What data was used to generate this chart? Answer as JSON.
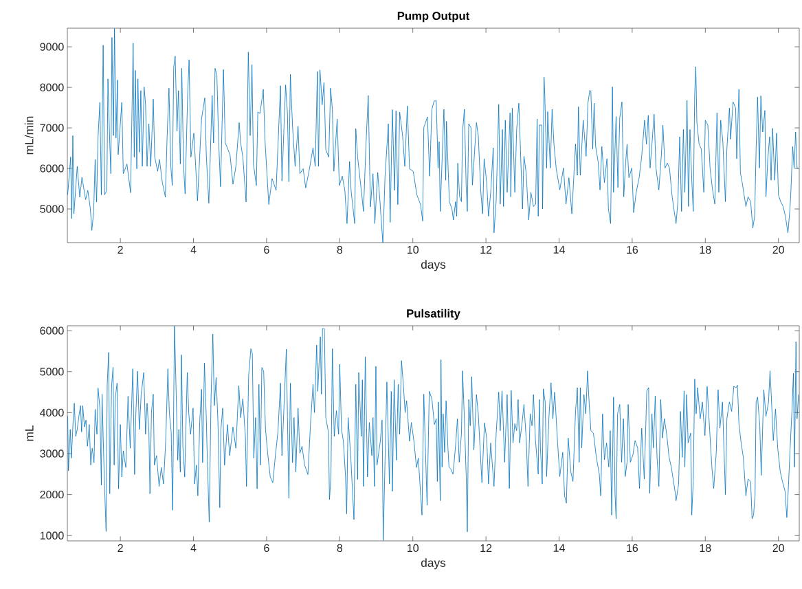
{
  "chart_data": [
    {
      "type": "line",
      "title": "Pump Output",
      "xlabel": "days",
      "ylabel": "mL/min",
      "color": "#0072bd",
      "marker": "none",
      "xlim": [
        0.55,
        20.57
      ],
      "ylim": [
        4170,
        9460
      ],
      "xticks": [
        2,
        4,
        6,
        8,
        10,
        12,
        14,
        16,
        18,
        20
      ],
      "yticks": [
        5000,
        6000,
        7000,
        8000,
        9000
      ],
      "x": [
        0.56,
        0.64,
        0.67,
        0.7,
        0.73,
        0.82,
        0.89,
        0.95,
        1.05,
        1.11,
        1.18,
        1.22,
        1.27,
        1.31,
        1.35,
        1.39,
        1.44,
        1.48,
        1.53,
        1.57,
        1.63,
        1.66,
        1.71,
        1.74,
        1.77,
        1.81,
        1.84,
        1.88,
        1.92,
        1.94,
        2.04,
        2.08,
        2.18,
        2.28,
        2.35,
        2.38,
        2.41,
        2.45,
        2.48,
        2.52,
        2.56,
        2.6,
        2.65,
        2.69,
        2.73,
        2.78,
        2.83,
        2.9,
        2.94,
        3.02,
        3.07,
        3.15,
        3.18,
        3.23,
        3.28,
        3.33,
        3.38,
        3.42,
        3.46,
        3.5,
        3.55,
        3.59,
        3.64,
        3.68,
        3.73,
        3.77,
        3.84,
        3.88,
        3.93,
        4.01,
        4.06,
        4.11,
        4.22,
        4.31,
        4.35,
        4.42,
        4.51,
        4.55,
        4.59,
        4.64,
        4.69,
        4.74,
        4.82,
        4.87,
        5.0,
        5.08,
        5.16,
        5.25,
        5.29,
        5.35,
        5.44,
        5.5,
        5.55,
        5.6,
        5.64,
        5.72,
        5.76,
        5.82,
        5.91,
        5.96,
        6.06,
        6.15,
        6.26,
        6.38,
        6.42,
        6.52,
        6.57,
        6.61,
        6.65,
        6.71,
        6.78,
        6.86,
        6.91,
        7.0,
        7.07,
        7.16,
        7.27,
        7.33,
        7.39,
        7.42,
        7.46,
        7.52,
        7.57,
        7.62,
        7.7,
        7.75,
        7.8,
        7.84,
        7.93,
        7.99,
        8.07,
        8.14,
        8.2,
        8.27,
        8.31,
        8.41,
        8.44,
        8.49,
        8.59,
        8.65,
        8.72,
        8.78,
        8.84,
        8.91,
        8.96,
        9.04,
        9.1,
        9.18,
        9.24,
        9.33,
        9.38,
        9.44,
        9.5,
        9.54,
        9.59,
        9.64,
        9.72,
        9.78,
        9.85,
        9.91,
        10.01,
        10.11,
        10.21,
        10.27,
        10.3,
        10.4,
        10.46,
        10.52,
        10.58,
        10.64,
        10.69,
        10.72,
        10.75,
        10.85,
        10.9,
        10.92,
        10.97,
        11.0,
        11.07,
        11.11,
        11.17,
        11.2,
        11.23,
        11.28,
        11.33,
        11.36,
        11.41,
        11.46,
        11.49,
        11.53,
        11.59,
        11.63,
        11.74,
        11.79,
        11.86,
        11.91,
        11.95,
        12.02,
        12.07,
        12.13,
        12.2,
        12.22,
        12.28,
        12.35,
        12.39,
        12.45,
        12.48,
        12.53,
        12.58,
        12.66,
        12.68,
        12.72,
        12.79,
        12.84,
        12.9,
        12.97,
        13.0,
        13.04,
        13.1,
        13.17,
        13.23,
        13.3,
        13.36,
        13.4,
        13.43,
        13.46,
        13.53,
        13.55,
        13.59,
        13.61,
        13.66,
        13.69,
        13.76,
        13.81,
        13.86,
        13.92,
        14.02,
        14.12,
        14.19,
        14.27,
        14.35,
        14.45,
        14.5,
        14.53,
        14.58,
        14.66,
        14.74,
        14.79,
        14.84,
        14.87,
        14.92,
        14.96,
        15.0,
        15.07,
        15.12,
        15.17,
        15.24,
        15.31,
        15.35,
        15.41,
        15.46,
        15.49,
        15.56,
        15.61,
        15.66,
        15.72,
        15.77,
        15.82,
        15.86,
        15.91,
        15.99,
        16.04,
        16.11,
        16.19,
        16.26,
        16.34,
        16.39,
        16.44,
        16.49,
        16.54,
        16.6,
        16.65,
        16.73,
        16.8,
        16.84,
        16.9,
        16.96,
        17.02,
        17.09,
        17.15,
        17.2,
        17.25,
        17.3,
        17.35,
        17.4,
        17.44,
        17.5,
        17.54,
        17.58,
        17.63,
        17.67,
        17.71,
        17.74,
        17.77,
        17.83,
        17.89,
        17.96,
        18.0,
        18.07,
        18.13,
        18.19,
        18.26,
        18.32,
        18.37,
        18.42,
        18.48,
        18.55,
        18.59,
        18.66,
        18.69,
        18.76,
        18.83,
        18.86,
        18.92,
        18.96,
        19.01,
        19.11,
        19.17,
        19.24,
        19.3,
        19.35,
        19.39,
        19.43,
        19.48,
        19.52,
        19.57,
        19.63,
        19.66,
        19.71,
        19.76,
        19.8,
        19.84,
        19.9,
        19.95,
        20.0,
        20.06,
        20.13,
        20.19,
        20.26,
        20.31,
        20.34,
        20.39,
        20.43,
        20.47,
        20.51,
        20.55
      ],
      "values": [
        5350,
        6280,
        4760,
        6810,
        4880,
        6050,
        5290,
        5780,
        5230,
        5460,
        5000,
        4470,
        4940,
        6220,
        5170,
        6780,
        7630,
        5350,
        9040,
        5350,
        5460,
        8210,
        6630,
        5870,
        9230,
        6810,
        9450,
        6750,
        8180,
        6340,
        7630,
        5870,
        6110,
        5400,
        9090,
        6280,
        8420,
        5990,
        8210,
        6400,
        7920,
        6050,
        8010,
        7570,
        6050,
        7100,
        6050,
        7710,
        6280,
        5930,
        6220,
        5640,
        5520,
        5290,
        6810,
        7980,
        6050,
        5580,
        8500,
        8770,
        6920,
        7920,
        6110,
        8470,
        6050,
        5370,
        7800,
        8680,
        6280,
        6870,
        6050,
        5200,
        7220,
        7740,
        6340,
        5140,
        7800,
        6630,
        8470,
        8300,
        6630,
        5550,
        8440,
        6630,
        6340,
        5610,
        6050,
        7130,
        6630,
        6280,
        5170,
        8870,
        6810,
        8560,
        6110,
        5580,
        7390,
        7360,
        7950,
        6630,
        5110,
        5750,
        5460,
        8040,
        5690,
        8060,
        7360,
        5670,
        8320,
        7040,
        6050,
        7040,
        5870,
        5990,
        5520,
        5930,
        6510,
        6050,
        8390,
        6050,
        8430,
        7570,
        8120,
        6460,
        6280,
        7980,
        7450,
        5930,
        7220,
        5580,
        5810,
        5460,
        4640,
        6170,
        5460,
        4640,
        6980,
        6280,
        5460,
        4940,
        6630,
        7800,
        5050,
        5870,
        4640,
        5900,
        5200,
        4170,
        5810,
        7100,
        4670,
        7450,
        5460,
        7420,
        5110,
        7390,
        6810,
        6050,
        7540,
        5990,
        5930,
        5350,
        5110,
        4700,
        7010,
        7270,
        5810,
        7450,
        7660,
        7670,
        6010,
        6660,
        4940,
        7460,
        5710,
        7160,
        5890,
        5180,
        5000,
        4730,
        5180,
        4820,
        6130,
        5300,
        5180,
        6900,
        7460,
        5530,
        4940,
        7100,
        7010,
        5590,
        7130,
        6810,
        5410,
        4880,
        6240,
        5650,
        4820,
        5410,
        6510,
        4410,
        5210,
        7580,
        5120,
        6960,
        5060,
        7190,
        5410,
        7370,
        5300,
        7490,
        5410,
        6960,
        7610,
        5770,
        5000,
        6300,
        5890,
        4730,
        5410,
        5060,
        5120,
        7220,
        4820,
        7070,
        7070,
        5000,
        8250,
        7790,
        6010,
        7400,
        6010,
        7460,
        6600,
        6010,
        5470,
        6010,
        5120,
        5770,
        4880,
        6600,
        5830,
        7520,
        5830,
        7190,
        6300,
        7610,
        7930,
        7900,
        6480,
        7610,
        6540,
        6160,
        5470,
        6540,
        5650,
        6240,
        5000,
        4640,
        8010,
        5410,
        7280,
        5530,
        7250,
        7640,
        5300,
        6130,
        6600,
        5770,
        6010,
        4910,
        5410,
        5770,
        6300,
        7190,
        6600,
        7310,
        6010,
        6600,
        7340,
        6010,
        5470,
        6360,
        7070,
        6010,
        6130,
        6010,
        5330,
        4940,
        4640,
        5180,
        6780,
        4940,
        6960,
        5410,
        7680,
        5060,
        6960,
        5710,
        4940,
        7840,
        8510,
        7130,
        6600,
        6480,
        5410,
        7190,
        7070,
        6010,
        5530,
        5120,
        7370,
        5410,
        7190,
        6660,
        5180,
        6480,
        7490,
        6720,
        7640,
        7490,
        6240,
        7950,
        5890,
        5650,
        5060,
        5300,
        5180,
        4530,
        4820,
        6480,
        7760,
        6010,
        7790,
        6900,
        7430,
        5300,
        6240,
        6780,
        5710,
        6990,
        5710,
        6870,
        5350,
        5180,
        5060,
        4820,
        4410,
        4940,
        5410,
        6540,
        6010,
        6900,
        6010,
        6010
      ]
    },
    {
      "type": "line",
      "title": "Pulsatility",
      "xlabel": "days",
      "ylabel": "mL",
      "color": "#0072bd",
      "marker": "none",
      "xlim": [
        0.55,
        20.57
      ],
      "ylim": [
        870,
        6120
      ],
      "xticks": [
        2,
        4,
        6,
        8,
        10,
        12,
        14,
        16,
        18,
        20
      ],
      "yticks": [
        1000,
        2000,
        3000,
        4000,
        5000,
        6000
      ],
      "x": [
        0.56,
        0.58,
        0.63,
        0.66,
        0.71,
        0.74,
        0.78,
        0.82,
        0.87,
        0.91,
        0.94,
        0.97,
        1.02,
        1.06,
        1.1,
        1.15,
        1.19,
        1.23,
        1.28,
        1.31,
        1.36,
        1.39,
        1.44,
        1.48,
        1.5,
        1.53,
        1.57,
        1.61,
        1.64,
        1.68,
        1.71,
        1.76,
        1.8,
        1.83,
        1.86,
        1.91,
        1.95,
        2.0,
        2.04,
        2.08,
        2.15,
        2.21,
        2.27,
        2.34,
        2.39,
        2.42,
        2.47,
        2.52,
        2.57,
        2.64,
        2.69,
        2.73,
        2.78,
        2.81,
        2.85,
        2.9,
        2.93,
        2.99,
        3.06,
        3.12,
        3.18,
        3.24,
        3.3,
        3.34,
        3.39,
        3.43,
        3.48,
        3.51,
        3.57,
        3.6,
        3.64,
        3.67,
        3.71,
        3.76,
        3.83,
        3.87,
        3.92,
        3.99,
        4.03,
        4.08,
        4.12,
        4.17,
        4.22,
        4.25,
        4.3,
        4.35,
        4.38,
        4.43,
        4.48,
        4.53,
        4.57,
        4.62,
        4.67,
        4.72,
        4.75,
        4.8,
        4.85,
        4.93,
        4.99,
        5.08,
        5.16,
        5.24,
        5.29,
        5.35,
        5.42,
        5.45,
        5.51,
        5.57,
        5.61,
        5.65,
        5.7,
        5.74,
        5.79,
        5.83,
        5.87,
        5.92,
        5.97,
        6.03,
        6.1,
        6.17,
        6.24,
        6.31,
        6.38,
        6.42,
        6.49,
        6.54,
        6.57,
        6.61,
        6.65,
        6.71,
        6.75,
        6.8,
        6.86,
        6.91,
        6.97,
        7.04,
        7.13,
        7.2,
        7.27,
        7.31,
        7.37,
        7.4,
        7.47,
        7.5,
        7.53,
        7.58,
        7.62,
        7.69,
        7.72,
        7.76,
        7.8,
        7.85,
        7.91,
        7.97,
        8.0,
        8.05,
        8.1,
        8.16,
        8.19,
        8.23,
        8.3,
        8.39,
        8.44,
        8.49,
        8.52,
        8.59,
        8.62,
        8.65,
        8.7,
        8.76,
        8.81,
        8.88,
        8.91,
        8.95,
        8.99,
        9.02,
        9.11,
        9.16,
        9.19,
        9.24,
        9.29,
        9.36,
        9.41,
        9.44,
        9.49,
        9.55,
        9.6,
        9.64,
        9.69,
        9.74,
        9.79,
        9.83,
        9.91,
        9.96,
        10.03,
        10.1,
        10.15,
        10.25,
        10.3,
        10.39,
        10.45,
        10.52,
        10.59,
        10.64,
        10.67,
        10.7,
        10.75,
        10.77,
        10.8,
        10.83,
        10.87,
        10.91,
        10.96,
        10.99,
        11.04,
        11.1,
        11.17,
        11.22,
        11.27,
        11.33,
        11.36,
        11.41,
        11.46,
        11.49,
        11.53,
        11.57,
        11.61,
        11.67,
        11.74,
        11.79,
        11.89,
        11.96,
        12.02,
        12.07,
        12.13,
        12.22,
        12.28,
        12.35,
        12.39,
        12.44,
        12.48,
        12.51,
        12.58,
        12.64,
        12.69,
        12.74,
        12.79,
        12.84,
        12.88,
        12.92,
        12.98,
        13.04,
        13.1,
        13.15,
        13.21,
        13.26,
        13.3,
        13.35,
        13.43,
        13.46,
        13.49,
        13.54,
        13.57,
        13.62,
        13.66,
        13.72,
        13.78,
        13.83,
        13.88,
        13.96,
        14.02,
        14.1,
        14.15,
        14.2,
        14.25,
        14.32,
        14.38,
        14.45,
        14.5,
        14.55,
        14.58,
        14.62,
        14.68,
        14.73,
        14.78,
        14.81,
        14.87,
        14.94,
        15.02,
        15.1,
        15.14,
        15.19,
        15.24,
        15.3,
        15.36,
        15.4,
        15.44,
        15.49,
        15.53,
        15.56,
        15.6,
        15.66,
        15.71,
        15.76,
        15.81,
        15.86,
        15.89,
        15.95,
        16.02,
        16.08,
        16.15,
        16.2,
        16.26,
        16.33,
        16.4,
        16.45,
        16.48,
        16.54,
        16.58,
        16.63,
        16.68,
        16.73,
        16.78,
        16.83,
        16.88,
        16.94,
        17.01,
        17.07,
        17.12,
        17.17,
        17.2,
        17.27,
        17.32,
        17.37,
        17.42,
        17.44,
        17.49,
        17.53,
        17.6,
        17.63,
        17.67,
        17.71,
        17.75,
        17.79,
        17.86,
        17.92,
        17.99,
        18.05,
        18.12,
        18.18,
        18.23,
        18.3,
        18.35,
        18.4,
        18.47,
        18.55,
        18.59,
        18.66,
        18.72,
        18.78,
        18.84,
        18.88,
        18.92,
        18.98,
        19.04,
        19.11,
        19.17,
        19.24,
        19.28,
        19.32,
        19.36,
        19.39,
        19.43,
        19.49,
        19.53,
        19.6,
        19.66,
        19.73,
        19.77,
        19.8,
        19.86,
        19.92,
        19.98,
        20.05,
        20.11,
        20.18,
        20.23,
        20.28,
        20.32,
        20.37,
        20.41,
        20.44,
        20.48,
        20.51,
        20.55
      ],
      "values": [
        3910,
        2580,
        3590,
        2890,
        3820,
        4230,
        3420,
        3590,
        3940,
        4170,
        3530,
        4170,
        3650,
        3820,
        3180,
        3710,
        2720,
        3130,
        2780,
        4080,
        3470,
        4600,
        4110,
        2230,
        4450,
        3420,
        2140,
        1100,
        4690,
        5470,
        2020,
        4640,
        5110,
        2720,
        4340,
        4720,
        2140,
        3710,
        2430,
        3070,
        2660,
        4400,
        3130,
        5070,
        2490,
        3880,
        5010,
        3590,
        4450,
        4980,
        3470,
        4230,
        3530,
        2020,
        4000,
        4450,
        2720,
        2950,
        2200,
        2660,
        2260,
        3300,
        5070,
        4000,
        3530,
        1620,
        6110,
        5100,
        2840,
        3590,
        2550,
        5410,
        3180,
        2430,
        4980,
        4000,
        3470,
        4110,
        2260,
        2720,
        1970,
        3760,
        4570,
        2780,
        5210,
        3880,
        2840,
        1330,
        4340,
        5920,
        4170,
        4860,
        3760,
        1680,
        3590,
        4110,
        2720,
        3710,
        2950,
        3650,
        3130,
        4660,
        3880,
        4340,
        3420,
        2200,
        4920,
        5560,
        5440,
        2890,
        3880,
        2140,
        4690,
        2720,
        5100,
        5010,
        3590,
        3010,
        2430,
        2290,
        2950,
        3530,
        4720,
        2950,
        4450,
        5550,
        3880,
        1910,
        4720,
        2780,
        3880,
        2550,
        4110,
        3010,
        3180,
        2720,
        2490,
        3710,
        4690,
        4000,
        5650,
        4520,
        5850,
        4450,
        6050,
        6050,
        3880,
        3530,
        1880,
        2430,
        5560,
        3420,
        4050,
        3470,
        5180,
        3590,
        3300,
        2430,
        1530,
        3880,
        2950,
        1390,
        4690,
        2370,
        4980,
        3420,
        4800,
        2200,
        5360,
        2430,
        3760,
        2950,
        3880,
        2200,
        5130,
        2720,
        3300,
        3820,
        880,
        2840,
        4750,
        2260,
        4520,
        2080,
        4800,
        2840,
        4690,
        3470,
        5270,
        4690,
        4000,
        4290,
        3300,
        3760,
        3300,
        2660,
        2890,
        1500,
        4450,
        1740,
        4520,
        4340,
        3710,
        3850,
        2320,
        4260,
        1850,
        5290,
        2670,
        3970,
        3030,
        4290,
        3140,
        2670,
        2620,
        2500,
        3200,
        3850,
        2790,
        3500,
        5020,
        3850,
        2440,
        1090,
        4320,
        3680,
        4880,
        3090,
        4440,
        3970,
        2290,
        3750,
        3380,
        2260,
        3260,
        2200,
        3500,
        4500,
        3560,
        4530,
        3560,
        2790,
        4440,
        2150,
        4540,
        3260,
        3730,
        3560,
        4320,
        3260,
        3680,
        4200,
        3380,
        2200,
        3970,
        3680,
        4440,
        3380,
        2500,
        4320,
        3140,
        2260,
        4580,
        4260,
        2440,
        3850,
        4730,
        3850,
        4500,
        3260,
        2440,
        3030,
        1970,
        1790,
        3380,
        2560,
        2320,
        4030,
        4610,
        2790,
        4610,
        3140,
        4440,
        3970,
        5020,
        4440,
        3560,
        3500,
        2910,
        2500,
        1970,
        3970,
        2850,
        3260,
        2670,
        3560,
        1500,
        4380,
        2030,
        1410,
        3970,
        4200,
        2790,
        3850,
        2440,
        2790,
        4200,
        2790,
        2970,
        3320,
        3140,
        2150,
        3620,
        2380,
        4530,
        4610,
        2030,
        3970,
        3140,
        4410,
        2910,
        2200,
        4320,
        3380,
        3850,
        3500,
        2910,
        2670,
        2380,
        2090,
        1850,
        2260,
        4030,
        2910,
        4530,
        2670,
        4440,
        3260,
        3500,
        1500,
        2320,
        4820,
        3970,
        4610,
        3850,
        4260,
        3440,
        4640,
        3560,
        2670,
        2150,
        3030,
        4560,
        3620,
        4260,
        2000,
        3850,
        4260,
        4030,
        4640,
        4610,
        4670,
        3730,
        3260,
        2910,
        1970,
        2380,
        2320,
        1410,
        1500,
        1970,
        4260,
        4380,
        3680,
        2470,
        4560,
        3910,
        4260,
        5020,
        4500,
        3320,
        4090,
        3140,
        2560,
        2320,
        2090,
        1440,
        2320,
        3140,
        4030,
        4960,
        2670,
        5730,
        3850,
        4440
      ]
    }
  ]
}
